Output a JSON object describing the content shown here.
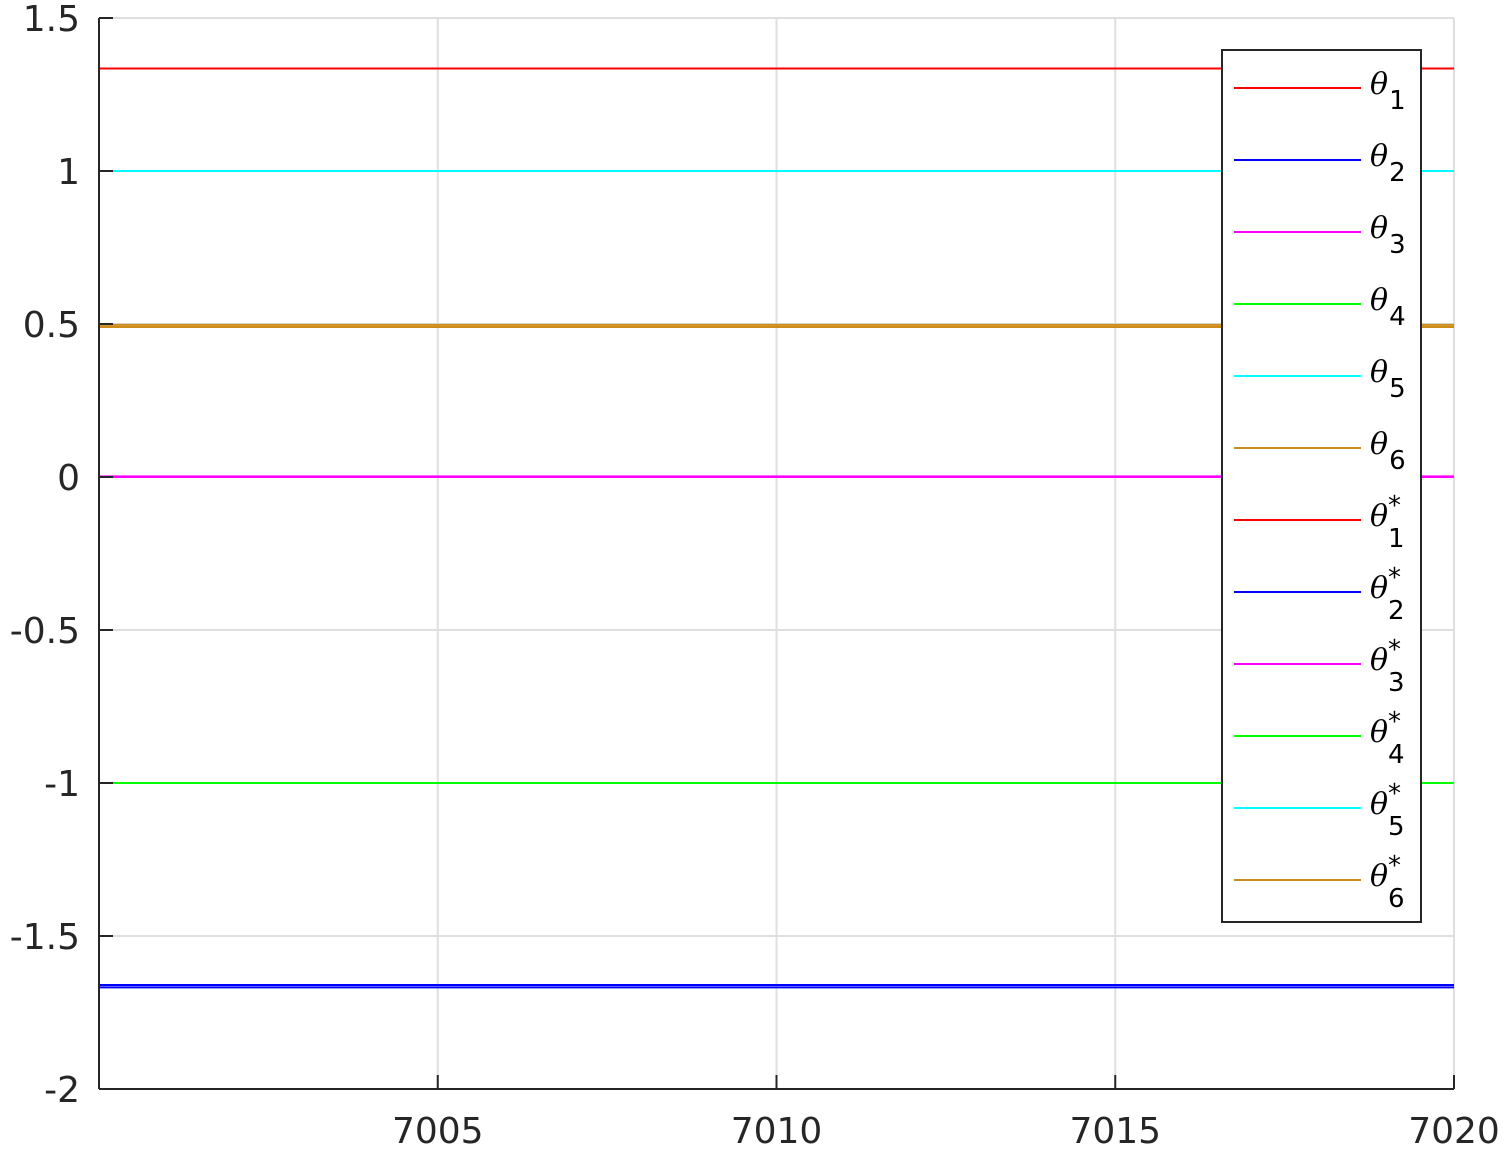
{
  "chart_data": {
    "type": "line",
    "title": "",
    "xlabel": "",
    "ylabel": "",
    "xlim": [
      7000,
      7020
    ],
    "ylim": [
      -2,
      1.5
    ],
    "x_ticks": [
      7005,
      7010,
      7015,
      7020
    ],
    "x_tick_labels": [
      "7005",
      "7010",
      "7015",
      "7020"
    ],
    "y_ticks": [
      1.5,
      1,
      0.5,
      0,
      -0.5,
      -1,
      -1.5,
      -2
    ],
    "y_tick_labels": [
      "1.5",
      "1",
      "0.5",
      "0",
      "-0.5",
      "-1",
      "-1.5",
      "-2"
    ],
    "grid": true,
    "legend_position": "top-right",
    "x": [
      7000,
      7020
    ],
    "series": [
      {
        "name": "θ1",
        "base": "θ",
        "sub": "1",
        "star": false,
        "color": "#ff0000",
        "values": [
          1.335,
          1.335
        ]
      },
      {
        "name": "θ2",
        "base": "θ",
        "sub": "2",
        "star": false,
        "color": "#0000ff",
        "values": [
          -1.66,
          -1.66
        ]
      },
      {
        "name": "θ3",
        "base": "θ",
        "sub": "3",
        "star": false,
        "color": "#ff00ff",
        "values": [
          0.0,
          0.0
        ]
      },
      {
        "name": "θ4",
        "base": "θ",
        "sub": "4",
        "star": false,
        "color": "#00ff00",
        "values": [
          -1.0,
          -1.0
        ]
      },
      {
        "name": "θ5",
        "base": "θ",
        "sub": "5",
        "star": false,
        "color": "#00ffff",
        "values": [
          1.0,
          1.0
        ]
      },
      {
        "name": "θ6",
        "base": "θ",
        "sub": "6",
        "star": false,
        "color": "#cc8c1a",
        "values": [
          0.49,
          0.49
        ]
      },
      {
        "name": "θ*1",
        "base": "θ",
        "sub": "1",
        "star": true,
        "color": "#ff0000",
        "values": [
          1.335,
          1.335
        ]
      },
      {
        "name": "θ*2",
        "base": "θ",
        "sub": "2",
        "star": true,
        "color": "#0000ff",
        "values": [
          -1.668,
          -1.668
        ]
      },
      {
        "name": "θ*3",
        "base": "θ",
        "sub": "3",
        "star": true,
        "color": "#ff00ff",
        "values": [
          0.002,
          0.002
        ]
      },
      {
        "name": "θ*4",
        "base": "θ",
        "sub": "4",
        "star": true,
        "color": "#00ff00",
        "values": [
          -1.0,
          -1.0
        ]
      },
      {
        "name": "θ*5",
        "base": "θ",
        "sub": "5",
        "star": true,
        "color": "#00ffff",
        "values": [
          1.0,
          1.0
        ]
      },
      {
        "name": "θ*6",
        "base": "θ",
        "sub": "6",
        "star": true,
        "color": "#cc8c1a",
        "values": [
          0.497,
          0.497
        ]
      }
    ]
  }
}
